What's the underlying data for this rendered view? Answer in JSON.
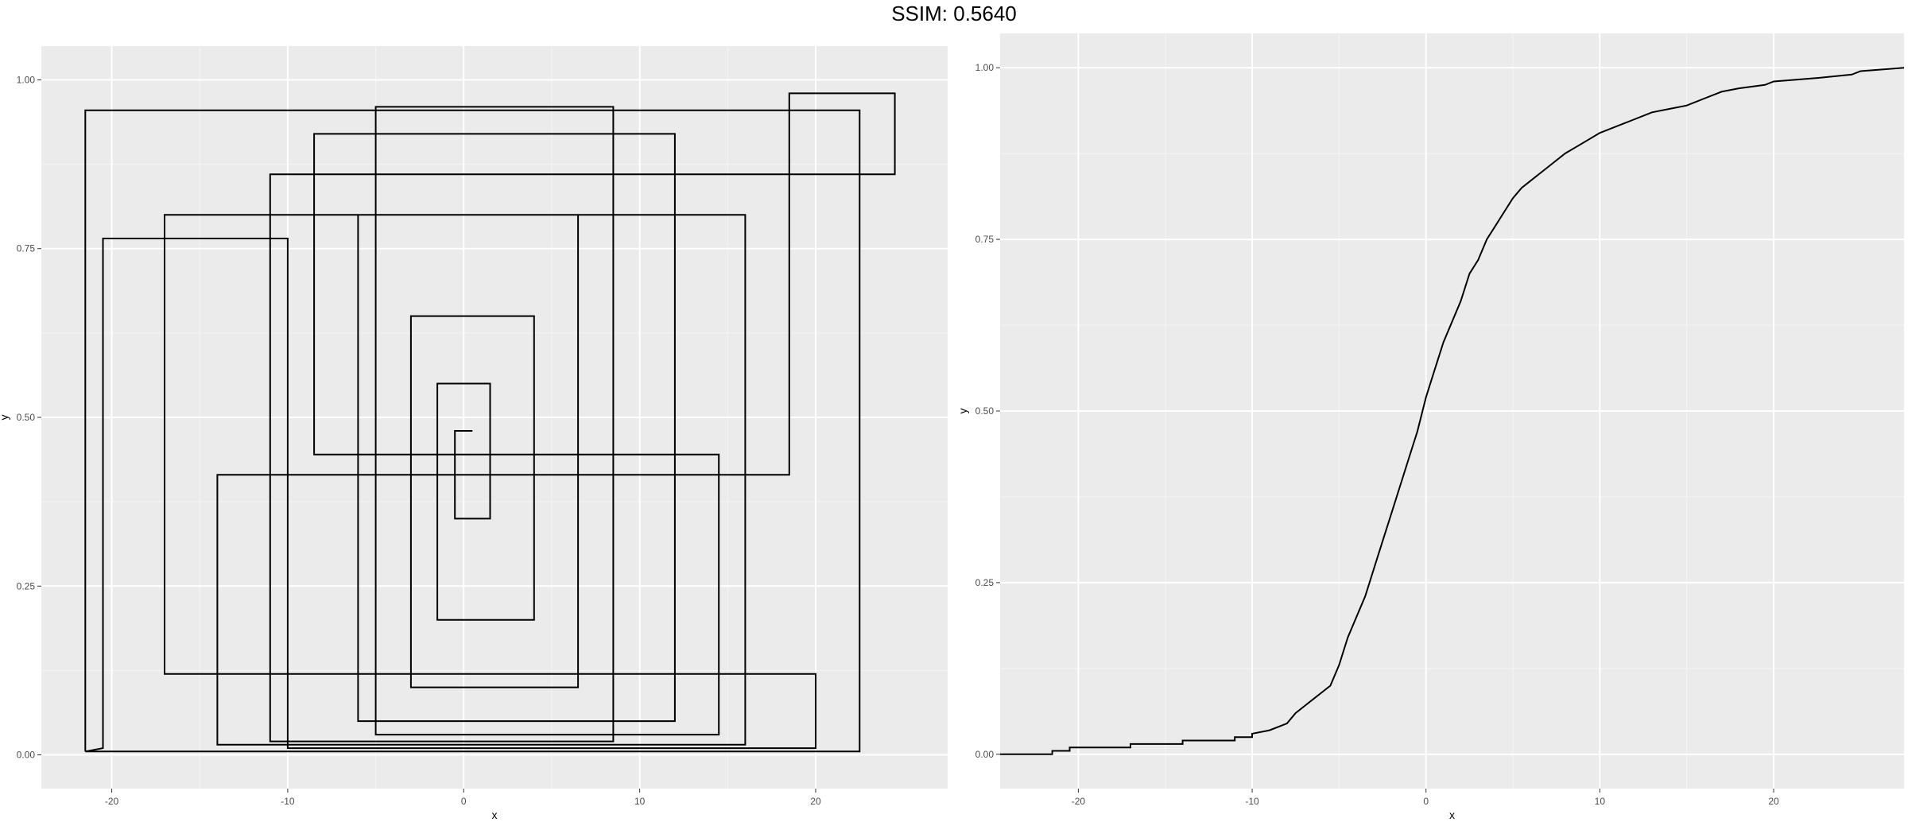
{
  "title": "SSIM: 0.5640",
  "chart_data": [
    {
      "type": "line",
      "panel": "left",
      "xlabel": "x",
      "ylabel": "y",
      "xlim": [
        -24,
        27.5
      ],
      "ylim": [
        -0.05,
        1.05
      ],
      "x_ticks": [
        -20,
        -10,
        0,
        10,
        20
      ],
      "y_ticks": [
        0,
        0.25,
        0.5,
        0.75,
        1
      ],
      "x_tick_labels": [
        "-20",
        "-10",
        "0",
        "10",
        "20"
      ],
      "y_tick_labels": [
        "0.00",
        "0.25",
        "0.50",
        "0.75",
        "1.00"
      ],
      "grid": true,
      "note_series": "unsorted step path through points (x, y)",
      "series": [
        {
          "points": [
            [
              -21.5,
              0.005
            ],
            [
              -21.5,
              0.955
            ],
            [
              22.5,
              0.955
            ],
            [
              22.5,
              0.005
            ],
            [
              -21.5,
              0.005
            ],
            [
              -20.5,
              0.01
            ],
            [
              -20.5,
              0.765
            ],
            [
              -10,
              0.765
            ],
            [
              -10,
              0.01
            ],
            [
              20,
              0.01
            ],
            [
              20,
              0.12
            ],
            [
              -17,
              0.12
            ],
            [
              -17,
              0.8
            ],
            [
              16,
              0.8
            ],
            [
              16,
              0.015
            ],
            [
              -14,
              0.015
            ],
            [
              -14,
              0.415
            ],
            [
              18.5,
              0.415
            ],
            [
              18.5,
              0.98
            ],
            [
              24.5,
              0.98
            ],
            [
              24.5,
              0.86
            ],
            [
              -11,
              0.86
            ],
            [
              -11,
              0.02
            ],
            [
              8.5,
              0.02
            ],
            [
              8.5,
              0.96
            ],
            [
              -5,
              0.96
            ],
            [
              -5,
              0.03
            ],
            [
              14.5,
              0.03
            ],
            [
              14.5,
              0.445
            ],
            [
              -8.5,
              0.445
            ],
            [
              -8.5,
              0.92
            ],
            [
              12,
              0.92
            ],
            [
              12,
              0.05
            ],
            [
              -6,
              0.05
            ],
            [
              -6,
              0.8
            ],
            [
              6.5,
              0.8
            ],
            [
              6.5,
              0.1
            ],
            [
              -3,
              0.1
            ],
            [
              -3,
              0.65
            ],
            [
              4,
              0.65
            ],
            [
              4,
              0.2
            ],
            [
              -1.5,
              0.2
            ],
            [
              -1.5,
              0.55
            ],
            [
              1.5,
              0.55
            ],
            [
              1.5,
              0.35
            ],
            [
              -0.5,
              0.35
            ],
            [
              -0.5,
              0.48
            ],
            [
              0.5,
              0.48
            ]
          ]
        }
      ]
    },
    {
      "type": "line",
      "panel": "right",
      "xlabel": "x",
      "ylabel": "y",
      "xlim": [
        -24.5,
        27.5
      ],
      "ylim": [
        -0.05,
        1.05
      ],
      "x_ticks": [
        -20,
        -10,
        0,
        10,
        20
      ],
      "y_ticks": [
        0,
        0.25,
        0.5,
        0.75,
        1
      ],
      "x_tick_labels": [
        "-20",
        "-10",
        "0",
        "10",
        "20"
      ],
      "y_tick_labels": [
        "0.00",
        "0.25",
        "0.50",
        "0.75",
        "1.00"
      ],
      "grid": true,
      "series": [
        {
          "points": [
            [
              -24.5,
              0.0
            ],
            [
              -21.5,
              0.0
            ],
            [
              -21.5,
              0.005
            ],
            [
              -20.5,
              0.005
            ],
            [
              -20.5,
              0.01
            ],
            [
              -17,
              0.01
            ],
            [
              -17,
              0.015
            ],
            [
              -14,
              0.015
            ],
            [
              -14,
              0.02
            ],
            [
              -11,
              0.02
            ],
            [
              -11,
              0.025
            ],
            [
              -10,
              0.025
            ],
            [
              -10,
              0.03
            ],
            [
              -9,
              0.035
            ],
            [
              -8,
              0.045
            ],
            [
              -7.5,
              0.06
            ],
            [
              -7,
              0.07
            ],
            [
              -6.5,
              0.08
            ],
            [
              -6,
              0.09
            ],
            [
              -5.5,
              0.1
            ],
            [
              -5,
              0.13
            ],
            [
              -4.5,
              0.17
            ],
            [
              -4,
              0.2
            ],
            [
              -3.5,
              0.23
            ],
            [
              -3,
              0.27
            ],
            [
              -2.5,
              0.31
            ],
            [
              -2,
              0.35
            ],
            [
              -1.5,
              0.39
            ],
            [
              -1,
              0.43
            ],
            [
              -0.5,
              0.47
            ],
            [
              0,
              0.52
            ],
            [
              0.5,
              0.56
            ],
            [
              1,
              0.6
            ],
            [
              1.5,
              0.63
            ],
            [
              2,
              0.66
            ],
            [
              2.5,
              0.7
            ],
            [
              3,
              0.72
            ],
            [
              3.5,
              0.75
            ],
            [
              4,
              0.77
            ],
            [
              4.5,
              0.79
            ],
            [
              5,
              0.81
            ],
            [
              5.5,
              0.825
            ],
            [
              6,
              0.835
            ],
            [
              7,
              0.855
            ],
            [
              8,
              0.875
            ],
            [
              9,
              0.89
            ],
            [
              10,
              0.905
            ],
            [
              11,
              0.915
            ],
            [
              12,
              0.925
            ],
            [
              13,
              0.935
            ],
            [
              14,
              0.94
            ],
            [
              15,
              0.945
            ],
            [
              16,
              0.955
            ],
            [
              17,
              0.965
            ],
            [
              18,
              0.97
            ],
            [
              19.5,
              0.975
            ],
            [
              20,
              0.98
            ],
            [
              22.5,
              0.985
            ],
            [
              24.5,
              0.99
            ],
            [
              25,
              0.995
            ],
            [
              27.5,
              1.0
            ]
          ]
        }
      ]
    }
  ]
}
